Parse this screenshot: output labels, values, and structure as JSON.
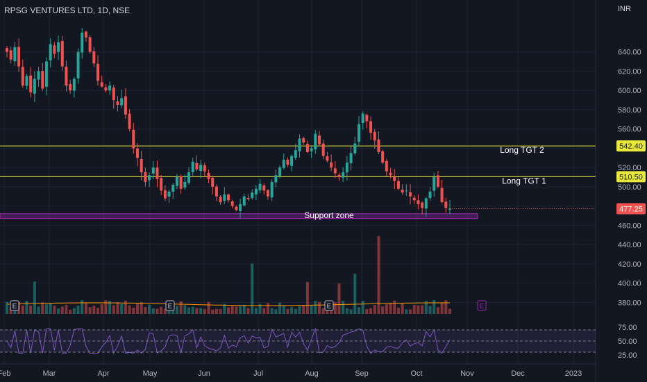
{
  "header": {
    "ticker": "RPSG VENTURES LTD, 1D, NSE",
    "currency": "INR"
  },
  "colors": {
    "up": "#26a69a",
    "down": "#ef5350",
    "level_line": "#e8e83a",
    "support_zone": "#9c27b0",
    "rsi_line": "#7e57c2",
    "ma_line": "#ff9800",
    "background": "#131722",
    "grid": "#1f2330"
  },
  "chart_data": {
    "type": "candlestick",
    "y_axis": {
      "ticks": [
        "640.00",
        "620.00",
        "600.00",
        "580.00",
        "560.00",
        "540.00",
        "520.00",
        "500.00",
        "480.00",
        "460.00",
        "440.00",
        "420.00",
        "400.00",
        "380.00"
      ],
      "range": [
        368,
        660
      ]
    },
    "x_axis": {
      "ticks": [
        "Feb",
        "Mar",
        "Apr",
        "May",
        "Jun",
        "Jul",
        "Aug",
        "Sep",
        "Oct",
        "Nov",
        "Dec",
        "2023"
      ]
    },
    "close_series": [
      640,
      632,
      645,
      625,
      605,
      615,
      598,
      612,
      620,
      602,
      630,
      648,
      638,
      650,
      625,
      605,
      600,
      612,
      640,
      660,
      655,
      640,
      628,
      610,
      604,
      600,
      605,
      590,
      585,
      592,
      575,
      560,
      540,
      530,
      515,
      505,
      512,
      520,
      508,
      496,
      488,
      495,
      502,
      510,
      498,
      505,
      515,
      526,
      518,
      523,
      516,
      508,
      500,
      490,
      484,
      492,
      486,
      480,
      476,
      482,
      490,
      487,
      494,
      498,
      503,
      496,
      490,
      505,
      512,
      520,
      528,
      523,
      532,
      538,
      550,
      546,
      536,
      540,
      555,
      544,
      532,
      527,
      520,
      514,
      510,
      515,
      525,
      535,
      545,
      565,
      576,
      568,
      556,
      548,
      536,
      525,
      516,
      512,
      506,
      498,
      494,
      496,
      490,
      486,
      482,
      478,
      488,
      495,
      510,
      500,
      484,
      478,
      477.25
    ],
    "price_labels": [
      {
        "label": "Long TGT 2",
        "value": "542.40"
      },
      {
        "label": "Long TGT 1",
        "value": "510.50"
      },
      {
        "label": "Last price",
        "value": "477.25"
      }
    ],
    "support_zone": {
      "label": "Support zone",
      "range": [
        467,
        472
      ]
    },
    "earnings_markers": [
      "E",
      "E",
      "E",
      "E"
    ],
    "rsi": {
      "ticks": [
        "75.00",
        "50.00",
        "25.00"
      ],
      "levels": [
        70,
        50,
        30
      ]
    }
  }
}
